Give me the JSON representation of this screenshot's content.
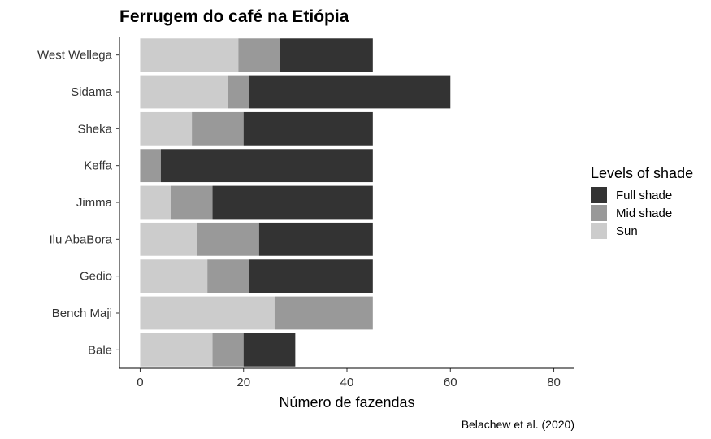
{
  "chart_data": {
    "type": "bar",
    "orientation": "horizontal",
    "stacked": true,
    "title": "Ferrugem do café na Etiópia",
    "xlabel": "Número de fazendas",
    "ylabel": "",
    "caption": "Belachew et al. (2020)",
    "xlim": [
      -4,
      84
    ],
    "xticks": [
      0,
      20,
      40,
      60,
      80
    ],
    "categories": [
      "Bale",
      "Bench Maji",
      "Gedio",
      "Ilu AbaBora",
      "Jimma",
      "Keffa",
      "Sheka",
      "Sidama",
      "West Wellega"
    ],
    "series": [
      {
        "name": "Sun",
        "color": "#cccccc",
        "values": [
          14,
          26,
          13,
          11,
          6,
          0,
          10,
          17,
          19
        ]
      },
      {
        "name": "Mid shade",
        "color": "#999999",
        "values": [
          6,
          19,
          8,
          12,
          8,
          4,
          10,
          4,
          8
        ]
      },
      {
        "name": "Full shade",
        "color": "#333333",
        "values": [
          10,
          0,
          24,
          22,
          31,
          41,
          25,
          39,
          18
        ]
      }
    ],
    "legend": {
      "title": "Levels of shade",
      "placement": "right",
      "order": [
        "Full shade",
        "Mid shade",
        "Sun"
      ]
    },
    "grid": false
  }
}
